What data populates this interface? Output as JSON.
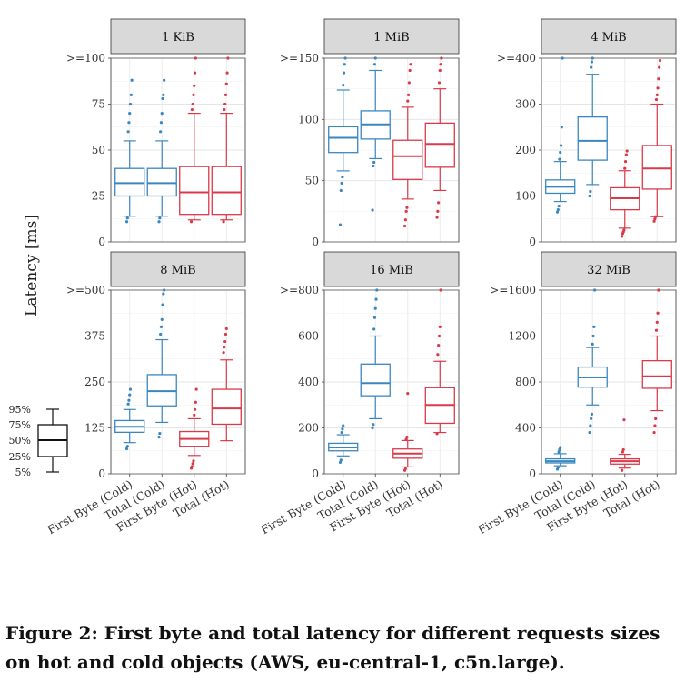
{
  "figure": {
    "ylabel": "Latency [ms]",
    "caption": "Figure 2: First byte and total latency for different requests sizes on hot and cold objects (AWS, eu-central-1, c5n.large).",
    "legend": {
      "labels": [
        "95%",
        "75%",
        "50%",
        "25%",
        "5%"
      ]
    },
    "colors": {
      "cold": "#3a87c0",
      "hot": "#d93a4a"
    }
  },
  "chart_data": [
    {
      "type": "box",
      "title": "1 KiB",
      "ylim": [
        0,
        100
      ],
      "yticks": [
        0,
        25,
        50,
        75,
        100
      ],
      "ytick_labels": [
        "0",
        "25",
        "50",
        "75",
        ">=100"
      ],
      "categories": [
        "First Byte (Cold)",
        "Total (Cold)",
        "First Byte (Hot)",
        "Total (Hot)"
      ],
      "boxes": [
        {
          "p5": 14,
          "q1": 25,
          "median": 32,
          "q3": 40,
          "p95": 55
        },
        {
          "p5": 14,
          "q1": 25,
          "median": 32,
          "q3": 40,
          "p95": 55
        },
        {
          "p5": 12,
          "q1": 15,
          "median": 27,
          "q3": 41,
          "p95": 70
        },
        {
          "p5": 12,
          "q1": 15,
          "median": 27,
          "q3": 41,
          "p95": 70
        }
      ],
      "outliers": [
        [
          11,
          13,
          60,
          65,
          70,
          75,
          80,
          88
        ],
        [
          11,
          13,
          60,
          65,
          70,
          78,
          80,
          88
        ],
        [
          11,
          72,
          75,
          80,
          85,
          92,
          100
        ],
        [
          11,
          72,
          75,
          80,
          86,
          92,
          100
        ]
      ]
    },
    {
      "type": "box",
      "title": "1 MiB",
      "ylim": [
        0,
        150
      ],
      "yticks": [
        0,
        50,
        100,
        150
      ],
      "ytick_labels": [
        "0",
        "50",
        "100",
        ">=150"
      ],
      "categories": [
        "First Byte (Cold)",
        "Total (Cold)",
        "First Byte (Hot)",
        "Total (Hot)"
      ],
      "boxes": [
        {
          "p5": 58,
          "q1": 73,
          "median": 85,
          "q3": 94,
          "p95": 124
        },
        {
          "p5": 68,
          "q1": 84,
          "median": 96,
          "q3": 107,
          "p95": 140
        },
        {
          "p5": 35,
          "q1": 51,
          "median": 70,
          "q3": 83,
          "p95": 110
        },
        {
          "p5": 42,
          "q1": 61,
          "median": 80,
          "q3": 97,
          "p95": 125
        }
      ],
      "outliers": [
        [
          14,
          42,
          48,
          53,
          128,
          138,
          145,
          150
        ],
        [
          26,
          62,
          65,
          145,
          150
        ],
        [
          13,
          18,
          25,
          28,
          115,
          120,
          130,
          140,
          145
        ],
        [
          20,
          25,
          32,
          130,
          140,
          145,
          150
        ]
      ]
    },
    {
      "type": "box",
      "title": "4 MiB",
      "ylim": [
        0,
        400
      ],
      "yticks": [
        0,
        100,
        200,
        300,
        400
      ],
      "ytick_labels": [
        "0",
        "100",
        "200",
        "300",
        ">=400"
      ],
      "categories": [
        "First Byte (Cold)",
        "Total (Cold)",
        "First Byte (Hot)",
        "Total (Hot)"
      ],
      "boxes": [
        {
          "p5": 88,
          "q1": 106,
          "median": 120,
          "q3": 135,
          "p95": 175
        },
        {
          "p5": 125,
          "q1": 178,
          "median": 220,
          "q3": 272,
          "p95": 365
        },
        {
          "p5": 30,
          "q1": 70,
          "median": 95,
          "q3": 118,
          "p95": 155
        },
        {
          "p5": 55,
          "q1": 115,
          "median": 160,
          "q3": 210,
          "p95": 300
        }
      ],
      "outliers": [
        [
          65,
          70,
          78,
          180,
          195,
          210,
          250,
          400
        ],
        [
          100,
          110,
          380,
          392,
          400
        ],
        [
          12,
          18,
          22,
          26,
          160,
          175,
          190,
          198
        ],
        [
          45,
          50,
          55,
          310,
          320,
          335,
          355,
          380,
          395
        ]
      ]
    },
    {
      "type": "box",
      "title": "8 MiB",
      "ylim": [
        0,
        500
      ],
      "yticks": [
        0,
        125,
        250,
        375,
        500
      ],
      "ytick_labels": [
        "0",
        "125",
        "250",
        "375",
        ">=500"
      ],
      "categories": [
        "First Byte (Cold)",
        "Total (Cold)",
        "First Byte (Hot)",
        "Total (Hot)"
      ],
      "boxes": [
        {
          "p5": 85,
          "q1": 113,
          "median": 128,
          "q3": 145,
          "p95": 175
        },
        {
          "p5": 140,
          "q1": 185,
          "median": 225,
          "q3": 270,
          "p95": 365
        },
        {
          "p5": 50,
          "q1": 75,
          "median": 95,
          "q3": 115,
          "p95": 150
        },
        {
          "p5": 90,
          "q1": 135,
          "median": 178,
          "q3": 230,
          "p95": 310
        }
      ],
      "outliers": [
        [
          68,
          75,
          190,
          200,
          215,
          230
        ],
        [
          100,
          110,
          380,
          400,
          420,
          460,
          490,
          500
        ],
        [
          15,
          20,
          28,
          35,
          160,
          175,
          195,
          230
        ],
        [
          330,
          345,
          360,
          380,
          395
        ]
      ]
    },
    {
      "type": "box",
      "title": "16 MiB",
      "ylim": [
        0,
        800
      ],
      "yticks": [
        0,
        200,
        400,
        600,
        800
      ],
      "ytick_labels": [
        "0",
        "200",
        "400",
        "600",
        ">=800"
      ],
      "categories": [
        "First Byte (Cold)",
        "Total (Cold)",
        "First Byte (Hot)",
        "Total (Hot)"
      ],
      "boxes": [
        {
          "p5": 78,
          "q1": 100,
          "median": 115,
          "q3": 133,
          "p95": 170
        },
        {
          "p5": 240,
          "q1": 340,
          "median": 395,
          "q3": 478,
          "p95": 600
        },
        {
          "p5": 30,
          "q1": 68,
          "median": 88,
          "q3": 108,
          "p95": 145
        },
        {
          "p5": 180,
          "q1": 220,
          "median": 300,
          "q3": 375,
          "p95": 490
        }
      ],
      "outliers": [
        [
          50,
          60,
          180,
          195,
          210
        ],
        [
          200,
          215,
          630,
          680,
          720,
          760,
          800
        ],
        [
          15,
          22,
          150,
          160,
          350
        ],
        [
          175,
          520,
          560,
          600,
          640,
          800
        ]
      ]
    },
    {
      "type": "box",
      "title": "32 MiB",
      "ylim": [
        0,
        1600
      ],
      "yticks": [
        0,
        400,
        800,
        1200,
        1600
      ],
      "ytick_labels": [
        "0",
        "400",
        "800",
        "1200",
        ">=1600"
      ],
      "categories": [
        "First Byte (Cold)",
        "Total (Cold)",
        "First Byte (Hot)",
        "Total (Hot)"
      ],
      "boxes": [
        {
          "p5": 70,
          "q1": 95,
          "median": 110,
          "q3": 130,
          "p95": 175
        },
        {
          "p5": 600,
          "q1": 755,
          "median": 840,
          "q3": 930,
          "p95": 1100
        },
        {
          "p5": 50,
          "q1": 85,
          "median": 110,
          "q3": 130,
          "p95": 170
        },
        {
          "p5": 550,
          "q1": 745,
          "median": 850,
          "q3": 985,
          "p95": 1200
        }
      ],
      "outliers": [
        [
          40,
          55,
          190,
          210,
          230
        ],
        [
          360,
          420,
          480,
          520,
          1130,
          1200,
          1280,
          1600
        ],
        [
          30,
          190,
          210,
          470
        ],
        [
          360,
          420,
          480,
          1250,
          1320,
          1400,
          1600
        ]
      ]
    }
  ]
}
